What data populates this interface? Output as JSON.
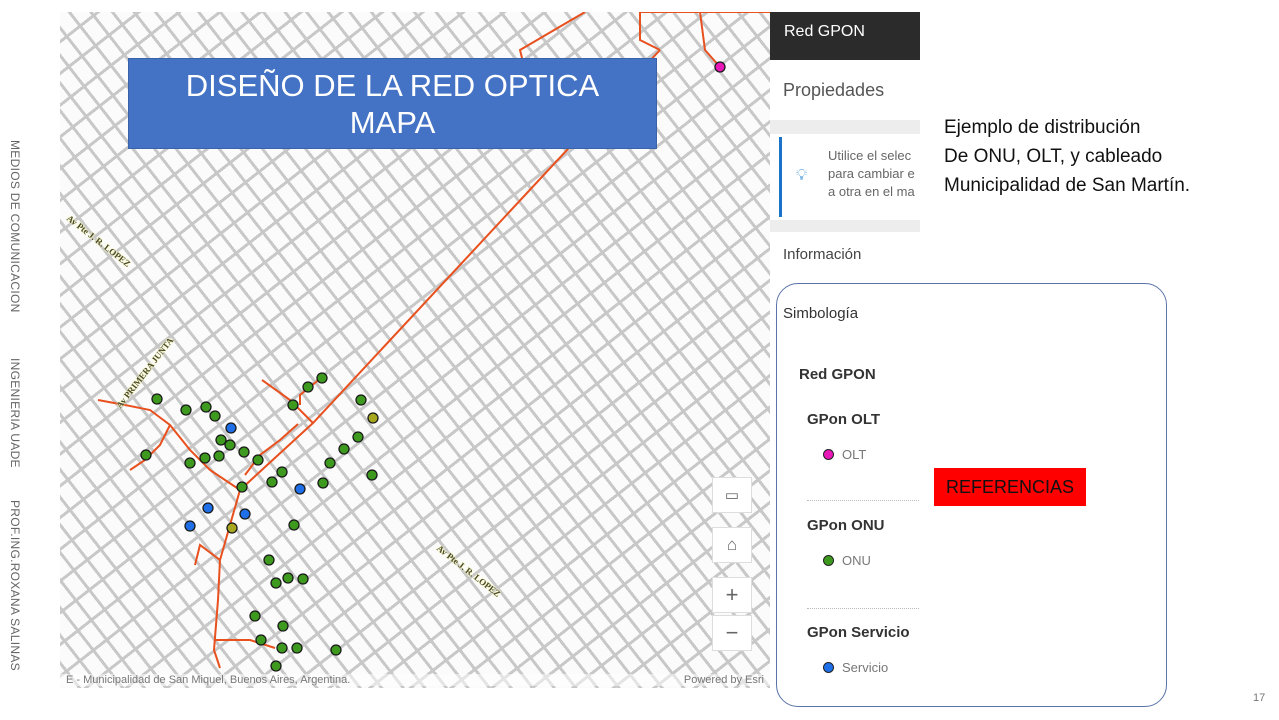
{
  "slide": {
    "title": "DISEÑO DE LA RED OPTICA MAPA",
    "title_line1": "DISEÑO DE LA RED OPTICA",
    "title_line2": "MAPA",
    "side_text": [
      "MEDIOS DE COMUNICACION",
      "INGENIERIA  UADE",
      "PROF.ING.ROXANA SALINAS"
    ],
    "description": [
      "Ejemplo de distribución",
      "De ONU, OLT, y cableado",
      "Municipalidad de San Martín."
    ],
    "references_label": "REFERENCIAS",
    "references_color": "#ff0000",
    "page_number": "17"
  },
  "map": {
    "street_labels": [
      "Av Pte J. R. LOPEZ",
      "Av PRIMERA JUNTA",
      "Av Pte J. R. LOPEZ"
    ],
    "attribution": "E - Municipalidad de San Miquel, Buenos Aires, Argentina.",
    "powered_by": "Powered by Esri",
    "tools": {
      "screen": "monitor-icon",
      "home": "home-icon",
      "zoom_in": "+",
      "zoom_out": "−"
    },
    "colors": {
      "cable": "#e8501e",
      "olt": "#e817b8",
      "onu": "#3d9a1e",
      "servicio": "#1e6fe8",
      "splitter": "#a8a820"
    }
  },
  "panel": {
    "header": "Red GPON",
    "properties_title": "Propiedades",
    "tip_lines": [
      "Utilice el selec",
      "para cambiar e",
      "a otra en el ma"
    ],
    "info_title": "Información",
    "legend": {
      "title": "Simbología",
      "layer": "Red GPON",
      "groups": [
        {
          "name": "GPon OLT",
          "item": "OLT",
          "color": "#e817b8"
        },
        {
          "name": "GPon ONU",
          "item": "ONU",
          "color": "#3d9a1e"
        },
        {
          "name": "GPon Servicio",
          "item": "Servicio",
          "color": "#1e6fe8"
        }
      ]
    }
  }
}
